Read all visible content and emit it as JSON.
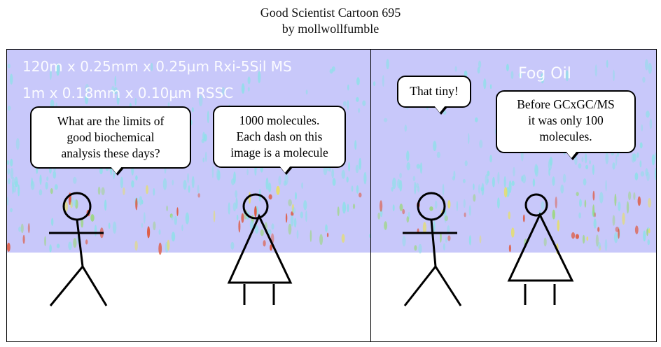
{
  "title": {
    "line1": "Good Scientist Cartoon 695",
    "line2": "by mollwollfumble"
  },
  "panel1": {
    "column_line1": "120m x 0.25mm x 0.25µm Rxi-5Sil MS",
    "column_line2": "1m x 0.18mm x 0.10µm RSSC",
    "bubble_left": [
      "What are the limits of",
      "good biochemical",
      "analysis these days?"
    ],
    "bubble_right": [
      "1000 molecules.",
      "Each dash on this",
      "image is a molecule"
    ]
  },
  "panel2": {
    "sample_label": "Fog Oil",
    "bubble_left": [
      "That tiny!"
    ],
    "bubble_right": [
      "Before GCxGC/MS",
      "it was only 100",
      "molecules."
    ]
  },
  "colors": {
    "chromatogram_background": "#c8c8fa",
    "dash_cyan": "#8ee0e8",
    "dash_green": "#9ad87a",
    "dash_yellow": "#e8e060",
    "dash_red": "#e05030",
    "line": "#000000"
  }
}
